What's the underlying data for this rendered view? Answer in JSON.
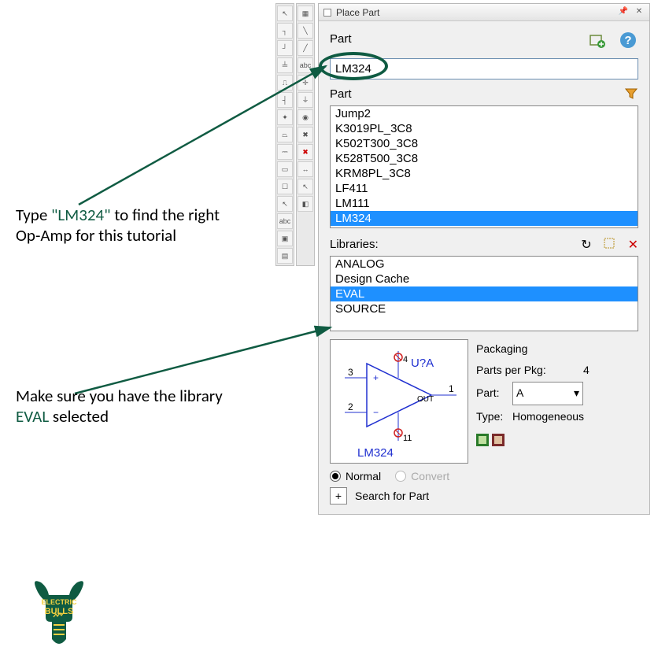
{
  "colors": {
    "annotation_green": "#0f5b42",
    "selection_blue": "#1e90ff",
    "panel_bg": "#f0f0f0",
    "preview_blue": "#2030d0",
    "preview_red": "#d02020"
  },
  "annotations": {
    "text1_pre": "Type ",
    "text1_quoted": "\"LM324\"",
    "text1_post": " to find the right Op-Amp for this tutorial",
    "text2_pre": "Make sure you have the library ",
    "text2_lib": "EVAL",
    "text2_post": " selected"
  },
  "panel": {
    "title": "Place Part",
    "part_label": "Part",
    "part_input_value": "LM324",
    "parts_list_label": "Part",
    "parts": [
      "Jump2",
      "K3019PL_3C8",
      "K502T300_3C8",
      "K528T500_3C8",
      "KRM8PL_3C8",
      "LF411",
      "LM111",
      "LM324"
    ],
    "parts_selected_index": 7,
    "libraries_label": "Libraries:",
    "libraries": [
      "ANALOG",
      "Design Cache",
      "EVAL",
      "SOURCE"
    ],
    "libraries_selected_index": 2,
    "packaging": {
      "header": "Packaging",
      "parts_per_pkg_label": "Parts per Pkg:",
      "parts_per_pkg_value": "4",
      "part_label": "Part:",
      "part_value": "A",
      "type_label": "Type:",
      "type_value": "Homogeneous"
    },
    "radio": {
      "normal": "Normal",
      "convert": "Convert",
      "selected": "normal"
    },
    "search_for_part": "Search for Part"
  },
  "preview": {
    "refdes": "U?A",
    "out_label": "OUT",
    "pin3": "3",
    "pin2": "2",
    "pin1": "1",
    "pin4": "4",
    "pin11": "11",
    "part_name": "LM324"
  },
  "logo": {
    "top_text": "ELECTRIC",
    "bottom_text": "BULLS"
  }
}
